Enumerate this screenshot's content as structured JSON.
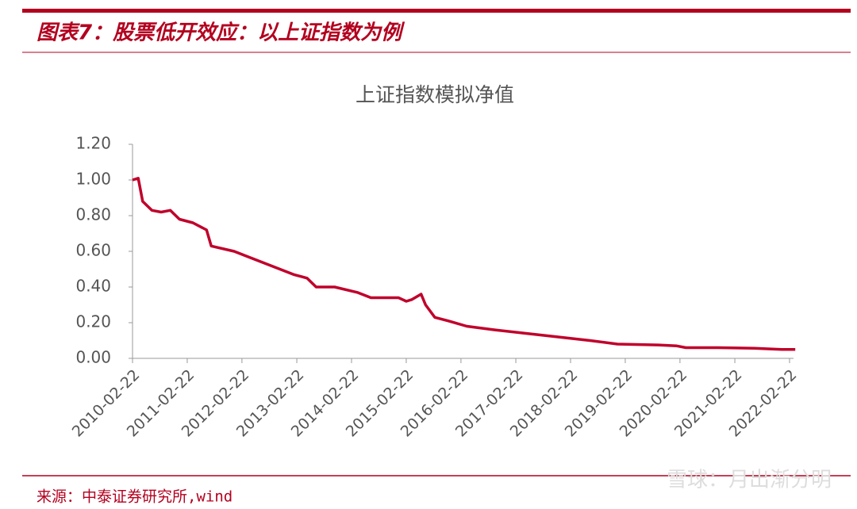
{
  "header": {
    "title": "图表7：股票低开效应：以上证指数为例"
  },
  "chart_data": {
    "type": "line",
    "title": "上证指数模拟净值",
    "x": [
      "2010-02-22",
      "2010-04-01",
      "2010-05-01",
      "2010-07-01",
      "2010-09-01",
      "2010-11-01",
      "2011-01-01",
      "2011-04-01",
      "2011-07-01",
      "2011-08-01",
      "2012-01-01",
      "2012-04-01",
      "2012-09-01",
      "2013-02-01",
      "2013-05-01",
      "2013-07-01",
      "2013-11-01",
      "2014-04-01",
      "2014-07-01",
      "2015-01-01",
      "2015-02-22",
      "2015-04-01",
      "2015-06-01",
      "2015-07-01",
      "2015-09-01",
      "2015-12-01",
      "2016-04-01",
      "2016-10-01",
      "2017-05-01",
      "2017-12-01",
      "2018-07-01",
      "2019-01-01",
      "2019-10-01",
      "2020-02-01",
      "2020-04-01",
      "2020-11-01",
      "2021-07-01",
      "2022-01-01",
      "2022-04-01"
    ],
    "series": [
      {
        "name": "上证指数模拟净值",
        "color": "#c0002b",
        "values": [
          1.0,
          1.01,
          0.88,
          0.83,
          0.82,
          0.83,
          0.78,
          0.76,
          0.72,
          0.63,
          0.6,
          0.57,
          0.52,
          0.47,
          0.45,
          0.4,
          0.4,
          0.37,
          0.34,
          0.34,
          0.32,
          0.33,
          0.36,
          0.3,
          0.23,
          0.21,
          0.18,
          0.16,
          0.14,
          0.12,
          0.1,
          0.08,
          0.075,
          0.07,
          0.06,
          0.06,
          0.057,
          0.05,
          0.05
        ]
      }
    ],
    "xlim": [
      "2010-02-22",
      "2022-02-22"
    ],
    "xticks": [
      "2010-02-22",
      "2011-02-22",
      "2012-02-22",
      "2013-02-22",
      "2014-02-22",
      "2015-02-22",
      "2016-02-22",
      "2017-02-22",
      "2018-02-22",
      "2019-02-22",
      "2020-02-22",
      "2021-02-22",
      "2022-02-22"
    ],
    "ylim": [
      0,
      1.2
    ],
    "yticks": [
      {
        "value": 0,
        "label": "0.00"
      },
      {
        "value": 0.2,
        "label": "0.20"
      },
      {
        "value": 0.4,
        "label": "0.40"
      },
      {
        "value": 0.6,
        "label": "0.60"
      },
      {
        "value": 0.8,
        "label": "0.80"
      },
      {
        "value": 1.0,
        "label": "1.00"
      },
      {
        "value": 1.2,
        "label": "1.20"
      }
    ],
    "grid": false
  },
  "footer": {
    "source": "来源：中泰证券研究所,wind",
    "watermark": "雪球：月出渐分明"
  }
}
